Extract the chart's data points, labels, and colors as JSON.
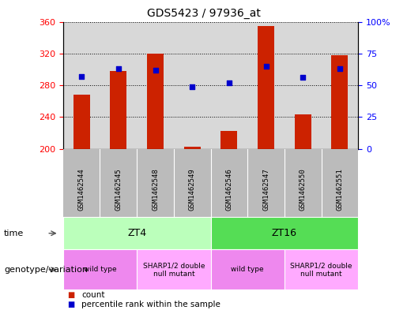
{
  "title": "GDS5423 / 97936_at",
  "samples": [
    "GSM1462544",
    "GSM1462545",
    "GSM1462548",
    "GSM1462549",
    "GSM1462546",
    "GSM1462547",
    "GSM1462550",
    "GSM1462551"
  ],
  "counts": [
    268,
    298,
    320,
    203,
    222,
    355,
    243,
    318
  ],
  "percentile_ranks": [
    57,
    63,
    62,
    49,
    52,
    65,
    56,
    63
  ],
  "ylim_left": [
    200,
    360
  ],
  "ylim_right": [
    0,
    100
  ],
  "yticks_left": [
    200,
    240,
    280,
    320,
    360
  ],
  "yticks_right": [
    0,
    25,
    50,
    75,
    100
  ],
  "bar_color": "#cc2200",
  "dot_color": "#0000cc",
  "bg_plot": "#d8d8d8",
  "time_groups": [
    {
      "label": "ZT4",
      "start": 0,
      "end": 4,
      "color": "#bbffbb"
    },
    {
      "label": "ZT16",
      "start": 4,
      "end": 8,
      "color": "#55dd55"
    }
  ],
  "genotype_groups": [
    {
      "label": "wild type",
      "start": 0,
      "end": 2,
      "color": "#ee88ee"
    },
    {
      "label": "SHARP1/2 double\nnull mutant",
      "start": 2,
      "end": 4,
      "color": "#ffaaff"
    },
    {
      "label": "wild type",
      "start": 4,
      "end": 6,
      "color": "#ee88ee"
    },
    {
      "label": "SHARP1/2 double\nnull mutant",
      "start": 6,
      "end": 8,
      "color": "#ffaaff"
    }
  ],
  "legend_count_color": "#cc2200",
  "legend_rank_color": "#0000cc",
  "time_label": "time",
  "genotype_label": "genotype/variation",
  "legend_count_text": "count",
  "legend_rank_text": "percentile rank within the sample",
  "tick_label_bg": "#bbbbbb"
}
